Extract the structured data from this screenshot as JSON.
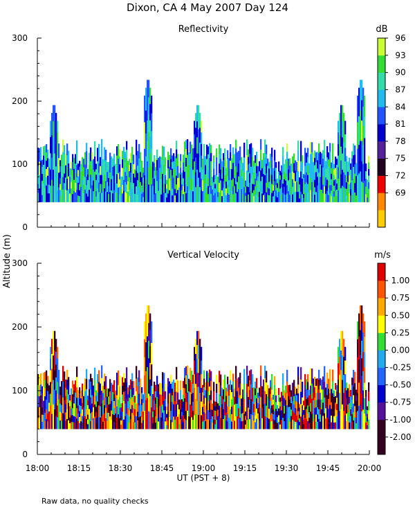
{
  "chart_data": [
    {
      "type": "heatmap",
      "title": "Dixon, CA  4 May 2007  Day 124",
      "subtitle": "Reflectivity",
      "xlabel": "UT  (PST + 8)",
      "ylabel": "Altitude (m)",
      "ylim": [
        0,
        300
      ],
      "yticks": [
        0,
        100,
        200,
        300
      ],
      "xlim_minutes": [
        0,
        120
      ],
      "xtick_labels": [],
      "colorbar": {
        "unit": "dB",
        "labels": [
          "69",
          "72",
          "75",
          "78",
          "81",
          "84",
          "87",
          "90",
          "93",
          "96"
        ],
        "colors": [
          "#ccff33",
          "#33dd33",
          "#33ddaa",
          "#22bbee",
          "#2255ff",
          "#0000cc",
          "#552299",
          "#220022",
          "#ee0000",
          "#ff8800",
          "#ffcc00"
        ]
      },
      "data_floor_m": 40,
      "typical_top_m": [
        100,
        140
      ],
      "peaks": [
        {
          "time_min": 40,
          "altitude_m": 240
        },
        {
          "time_min": 117,
          "altitude_m": 240
        },
        {
          "time_min": 58,
          "altitude_m": 200
        },
        {
          "time_min": 6,
          "altitude_m": 200
        },
        {
          "time_min": 110,
          "altitude_m": 200
        }
      ]
    },
    {
      "type": "heatmap",
      "subtitle": "Vertical Velocity",
      "xlabel": "UT  (PST + 8)",
      "ylabel": "Altitude (m)",
      "ylim": [
        0,
        300
      ],
      "yticks": [
        0,
        100,
        200,
        300
      ],
      "xlim_minutes": [
        0,
        120
      ],
      "xtick_labels": [
        "18:00",
        "18:15",
        "18:30",
        "18:45",
        "19:00",
        "19:15",
        "19:30",
        "19:45",
        "20:00"
      ],
      "colorbar": {
        "unit": "m/s",
        "labels": [
          "1.00",
          "0.75",
          "0.50",
          "0.25",
          "0.00",
          "-0.25",
          "-0.50",
          "-0.75",
          "-1.00",
          "-2.00"
        ],
        "colors": [
          "#dd0000",
          "#ff5500",
          "#ffaa00",
          "#ffff00",
          "#33dd33",
          "#22aaee",
          "#2266ff",
          "#0000cc",
          "#551199",
          "#330022",
          "#330022"
        ]
      },
      "data_floor_m": 40,
      "typical_top_m": [
        100,
        140
      ],
      "peaks": [
        {
          "time_min": 40,
          "altitude_m": 240
        },
        {
          "time_min": 117,
          "altitude_m": 240
        },
        {
          "time_min": 58,
          "altitude_m": 200
        },
        {
          "time_min": 6,
          "altitude_m": 200
        },
        {
          "time_min": 110,
          "altitude_m": 200
        }
      ]
    }
  ],
  "footer_note": "Raw data, no quality checks"
}
